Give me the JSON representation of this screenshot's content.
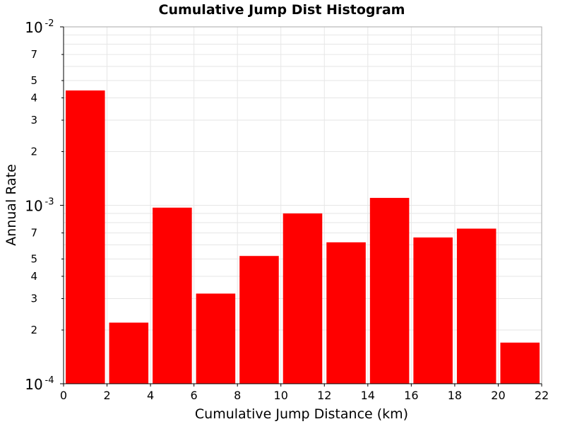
{
  "chart_data": {
    "type": "bar",
    "title": "Cumulative Jump Dist Histogram",
    "xlabel": "Cumulative Jump Distance (km)",
    "ylabel": "Annual Rate",
    "xlim": [
      0,
      22
    ],
    "ylim": [
      0.0001,
      0.01
    ],
    "yscale": "log",
    "grid": true,
    "bar_color": "#ff0000",
    "bin_width": 2,
    "x_ticks": [
      0,
      2,
      4,
      6,
      8,
      10,
      12,
      14,
      16,
      18,
      20,
      22
    ],
    "y_major_ticks": [
      {
        "value": 0.01,
        "base": "10",
        "exp": "-2"
      },
      {
        "value": 0.001,
        "base": "10",
        "exp": "-3"
      },
      {
        "value": 0.0001,
        "base": "10",
        "exp": "-4"
      }
    ],
    "y_minor_labels": [
      {
        "value": 0.007,
        "label": "7"
      },
      {
        "value": 0.005,
        "label": "5"
      },
      {
        "value": 0.004,
        "label": "4"
      },
      {
        "value": 0.003,
        "label": "3"
      },
      {
        "value": 0.002,
        "label": "2"
      },
      {
        "value": 0.0007,
        "label": "7"
      },
      {
        "value": 0.0005,
        "label": "5"
      },
      {
        "value": 0.0004,
        "label": "4"
      },
      {
        "value": 0.0003,
        "label": "3"
      },
      {
        "value": 0.0002,
        "label": "2"
      }
    ],
    "bins": [
      {
        "x_start": 0,
        "x_end": 2,
        "value": 0.0044
      },
      {
        "x_start": 2,
        "x_end": 4,
        "value": 0.00022
      },
      {
        "x_start": 4,
        "x_end": 6,
        "value": 0.00097
      },
      {
        "x_start": 6,
        "x_end": 8,
        "value": 0.00032
      },
      {
        "x_start": 8,
        "x_end": 10,
        "value": 0.00052
      },
      {
        "x_start": 10,
        "x_end": 12,
        "value": 0.0009
      },
      {
        "x_start": 12,
        "x_end": 14,
        "value": 0.00062
      },
      {
        "x_start": 14,
        "x_end": 16,
        "value": 0.0011
      },
      {
        "x_start": 16,
        "x_end": 18,
        "value": 0.00066
      },
      {
        "x_start": 18,
        "x_end": 20,
        "value": 0.00074
      },
      {
        "x_start": 20,
        "x_end": 22,
        "value": 0.00017
      }
    ]
  }
}
